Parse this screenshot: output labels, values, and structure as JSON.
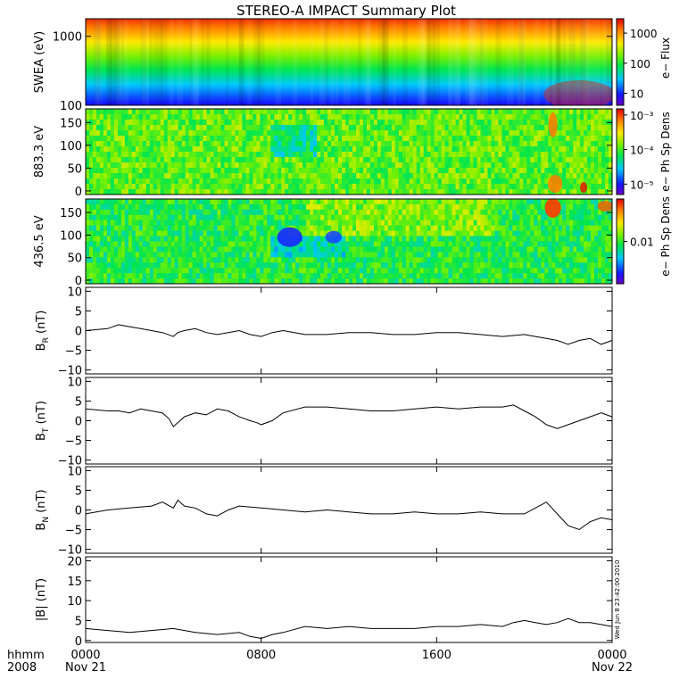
{
  "chart_data": {
    "type": "line",
    "title": "STEREO-A IMPACT Summary Plot",
    "x_axis": {
      "ticks": [
        "0000",
        "0800",
        "1600",
        "0000"
      ],
      "tick_hours": [
        0,
        8,
        16,
        24
      ],
      "dates": [
        "Nov 21",
        "",
        "",
        "Nov 22"
      ],
      "label_top": "hhmm",
      "label_bottom": "2008",
      "range_hours": [
        0,
        24
      ]
    },
    "timestamp": "Wed Jun  8 23:42:00 2010",
    "spectrograms": [
      {
        "type": "heatmap",
        "ylabel": "SWEA (eV)",
        "yscale": "log",
        "ylim": [
          100,
          1800
        ],
        "yticks": [
          100,
          1000
        ],
        "yticklabels": [
          "100",
          "1000"
        ],
        "colorbar": {
          "label": "e− Flux",
          "scale": "log",
          "range": [
            4,
            3000
          ],
          "ticks": [
            10,
            100,
            1000
          ],
          "ticklabels": [
            "10",
            "100",
            "1000"
          ]
        }
      },
      {
        "type": "heatmap",
        "ylabel": "883.3 eV",
        "yscale": "linear",
        "ylim": [
          -8,
          180
        ],
        "yticks": [
          0,
          50,
          100,
          150
        ],
        "yticklabels": [
          "0",
          "50",
          "100",
          "150"
        ],
        "colorbar": {
          "label": "e− Ph Sp Dens",
          "scale": "log",
          "range": [
            5e-06,
            0.0015
          ],
          "ticks": [
            1e-05,
            0.0001,
            0.001
          ],
          "ticklabels": [
            "10⁻⁵",
            "10⁻⁴",
            "10⁻³"
          ]
        }
      },
      {
        "type": "heatmap",
        "ylabel": "436.5 eV",
        "yscale": "linear",
        "ylim": [
          -8,
          180
        ],
        "yticks": [
          0,
          50,
          100,
          150
        ],
        "yticklabels": [
          "0",
          "50",
          "100",
          "150"
        ],
        "colorbar": {
          "label": "e− Ph Sp Dens",
          "scale": "log",
          "range": [
            0.001,
            0.1
          ],
          "ticks": [
            0.01
          ],
          "ticklabels": [
            "0.01"
          ]
        }
      }
    ],
    "panels": [
      {
        "ylabel": "B",
        "subscript": "R",
        "unit": "(nT)",
        "ylim": [
          -11,
          11
        ],
        "yticks": [
          -10,
          -5,
          0,
          5,
          10
        ],
        "yticklabels": [
          "−10",
          "−5",
          "0",
          "5",
          "10"
        ],
        "series": [
          {
            "x": [
              0,
              1,
              1.5,
              2,
              2.5,
              3,
              3.5,
              4,
              4.2,
              4.5,
              5,
              5.5,
              6,
              6.5,
              7,
              7.5,
              8,
              8.5,
              9,
              10,
              11,
              12,
              13,
              14,
              15,
              16,
              17,
              18,
              19,
              20,
              20.5,
              21,
              21.5,
              22,
              22.5,
              23,
              23.5,
              24
            ],
            "y": [
              0,
              0.5,
              1.5,
              1,
              0.5,
              0,
              -0.5,
              -1.5,
              -0.5,
              0,
              0.5,
              -0.5,
              -1,
              -0.5,
              0,
              -1,
              -1.5,
              -0.5,
              0,
              -1,
              -1,
              -0.5,
              -0.5,
              -1,
              -1,
              -0.5,
              -0.5,
              -1,
              -1.5,
              -1,
              -1.5,
              -2,
              -2.5,
              -3.5,
              -2.5,
              -2,
              -3.5,
              -2.5
            ]
          }
        ]
      },
      {
        "ylabel": "B",
        "subscript": "T",
        "unit": "(nT)",
        "ylim": [
          -11,
          11
        ],
        "yticks": [
          -10,
          -5,
          0,
          5,
          10
        ],
        "yticklabels": [
          "−10",
          "−5",
          "0",
          "5",
          "10"
        ],
        "series": [
          {
            "x": [
              0,
              1,
              1.5,
              2,
              2.5,
              3,
              3.5,
              3.8,
              4,
              4.5,
              5,
              5.5,
              6,
              6.5,
              7,
              7.5,
              7.8,
              8,
              8.5,
              9,
              10,
              11,
              12,
              13,
              14,
              15,
              16,
              17,
              18,
              19,
              19.5,
              20,
              20.5,
              21,
              21.5,
              22,
              22.5,
              23,
              23.5,
              24
            ],
            "y": [
              3,
              2.5,
              2.5,
              2,
              3,
              2.5,
              2,
              0.5,
              -1.5,
              1,
              2,
              1.5,
              3,
              2.5,
              1,
              0,
              -0.5,
              -1,
              0,
              2,
              3.5,
              3.5,
              3,
              2.5,
              2.5,
              3,
              3.5,
              3,
              3.5,
              3.5,
              4,
              2.5,
              1,
              -1,
              -2,
              -1,
              0,
              1,
              2,
              1
            ]
          }
        ]
      },
      {
        "ylabel": "B",
        "subscript": "N",
        "unit": "(nT)",
        "ylim": [
          -11,
          11
        ],
        "yticks": [
          -10,
          -5,
          0,
          5,
          10
        ],
        "yticklabels": [
          "−10",
          "−5",
          "0",
          "5",
          "10"
        ],
        "series": [
          {
            "x": [
              0,
              1,
              2,
              3,
              3.5,
              4,
              4.2,
              4.5,
              5,
              5.5,
              6,
              6.5,
              7,
              8,
              9,
              10,
              11,
              12,
              13,
              14,
              15,
              16,
              17,
              18,
              19,
              20,
              20.5,
              21,
              21.5,
              22,
              22.5,
              23,
              23.5,
              24
            ],
            "y": [
              -1,
              0,
              0.5,
              1,
              2,
              0.5,
              2.5,
              1,
              0.5,
              -1,
              -1.5,
              0,
              1,
              0.5,
              0,
              -0.5,
              0,
              -0.5,
              -1,
              -1,
              -0.5,
              -1,
              -1,
              -0.5,
              -1,
              -1,
              0.5,
              2,
              -1,
              -4,
              -5,
              -3,
              -2,
              -2.5
            ]
          }
        ]
      },
      {
        "ylabel": "|B|",
        "subscript": "",
        "unit": "(nT)",
        "ylim": [
          -0.5,
          21
        ],
        "yticks": [
          0,
          5,
          10,
          15,
          20
        ],
        "yticklabels": [
          "0",
          "5",
          "10",
          "15",
          "20"
        ],
        "series": [
          {
            "x": [
              0,
              1,
              2,
              3,
              4,
              5,
              6,
              7,
              7.5,
              8,
              8.5,
              9,
              10,
              11,
              12,
              13,
              14,
              15,
              16,
              17,
              18,
              19,
              19.5,
              20,
              20.5,
              21,
              21.5,
              22,
              22.5,
              23,
              23.5,
              24
            ],
            "y": [
              3,
              2.5,
              2,
              2.5,
              3,
              2,
              1.5,
              2,
              1,
              0.5,
              1.5,
              2,
              3.5,
              3,
              3.5,
              3,
              3,
              3,
              3.5,
              3.5,
              4,
              3.5,
              4.5,
              5,
              4.5,
              4,
              4.5,
              5.5,
              4.5,
              4.5,
              4,
              3.5
            ]
          }
        ]
      }
    ]
  }
}
